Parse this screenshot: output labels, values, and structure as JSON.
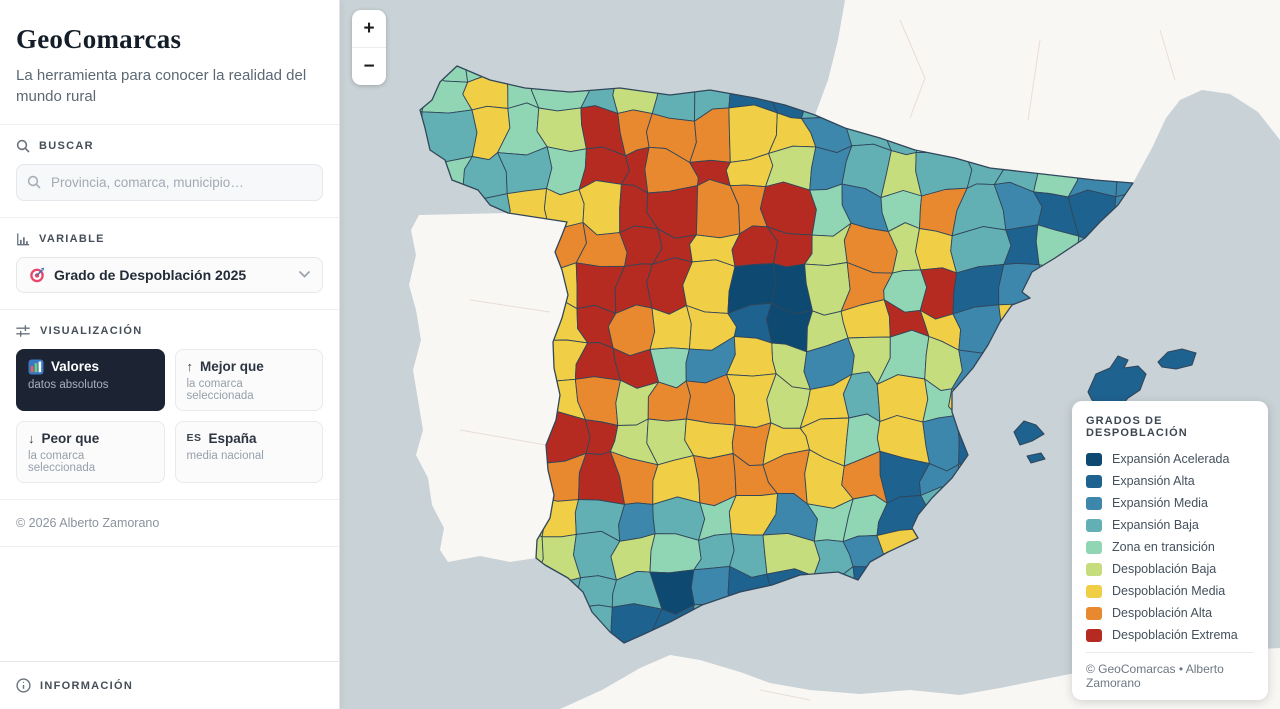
{
  "app": {
    "title": "GeoComarcas",
    "subtitle": "La herramienta para conocer la realidad del mundo rural",
    "copyright": "© 2026 Alberto Zamorano"
  },
  "search": {
    "section_label": "BUSCAR",
    "placeholder": "Provincia, comarca, municipio…"
  },
  "variable": {
    "section_label": "VARIABLE",
    "selected": "Grado de Despoblación 2025"
  },
  "visualization": {
    "section_label": "VISUALIZACIÓN",
    "options": [
      {
        "label": "Valores",
        "sublabel": "datos absolutos",
        "active": true
      },
      {
        "label": "Mejor que",
        "sublabel": "la comarca seleccionada",
        "prefix": "↑"
      },
      {
        "label": "Peor que",
        "sublabel": "la comarca seleccionada",
        "prefix": "↓"
      },
      {
        "label": "España",
        "sublabel": "media nacional",
        "prefix": "ES"
      }
    ]
  },
  "info": {
    "section_label": "INFORMACIÓN"
  },
  "map_controls": {
    "zoom_in": "+",
    "zoom_out": "−"
  },
  "legend": {
    "title": "GRADOS DE DESPOBLACIÓN",
    "items": [
      {
        "label": "Expansión Acelerada",
        "color": "#0e4971"
      },
      {
        "label": "Expansión Alta",
        "color": "#1e6290"
      },
      {
        "label": "Expansión Media",
        "color": "#3d87ac"
      },
      {
        "label": "Expansión Baja",
        "color": "#62b0b4"
      },
      {
        "label": "Zona en transición",
        "color": "#90d5b4"
      },
      {
        "label": "Despoblación Baja",
        "color": "#c5dd7d"
      },
      {
        "label": "Despoblación Media",
        "color": "#f0cf46"
      },
      {
        "label": "Despoblación Alta",
        "color": "#e8892f"
      },
      {
        "label": "Despoblación Extrema",
        "color": "#b52b21"
      }
    ],
    "footer": "© GeoComarcas • Alberto Zamorano"
  },
  "icons": {
    "search_section": "magnifying-glass",
    "search_input": "magnifying-glass",
    "variable_section": "column-chart",
    "variable_selected": "target-emoji",
    "visualization_section": "sliders",
    "valores_option": "bar-chart-emoji",
    "mejor_option": "arrow-up",
    "peor_option": "arrow-down",
    "espana_option": "ES-text-badge",
    "information_section": "info-circle",
    "variable_dropdown": "chevron-down"
  },
  "map_theme": {
    "sea": "#c9d2d6",
    "neighbor_land": "#f8f7f4",
    "border_stroke": "#31465a"
  }
}
